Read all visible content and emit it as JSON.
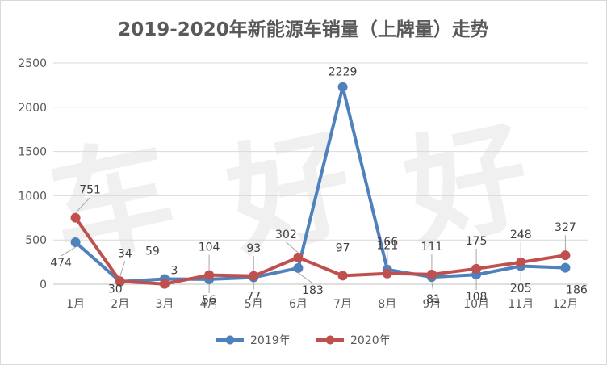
{
  "chart_data": {
    "type": "line",
    "title": "2019-2020年新能源车销量（上牌量）走势",
    "watermark": "车好好",
    "categories": [
      "1月",
      "2月",
      "3月",
      "4月",
      "5月",
      "6月",
      "7月",
      "8月",
      "9月",
      "10月",
      "11月",
      "12月"
    ],
    "series": [
      {
        "name": "2019年",
        "color": "#4f81bd",
        "values": [
          474,
          30,
          59,
          56,
          77,
          183,
          2229,
          166,
          81,
          108,
          205,
          186
        ]
      },
      {
        "name": "2020年",
        "color": "#c0504d",
        "values": [
          751,
          34,
          3,
          104,
          93,
          302,
          97,
          121,
          111,
          175,
          248,
          327
        ]
      }
    ],
    "ylim": [
      0,
      2500
    ],
    "yticks": [
      0,
      500,
      1000,
      1500,
      2000,
      2500
    ],
    "grid": true,
    "legend": "bottom"
  }
}
